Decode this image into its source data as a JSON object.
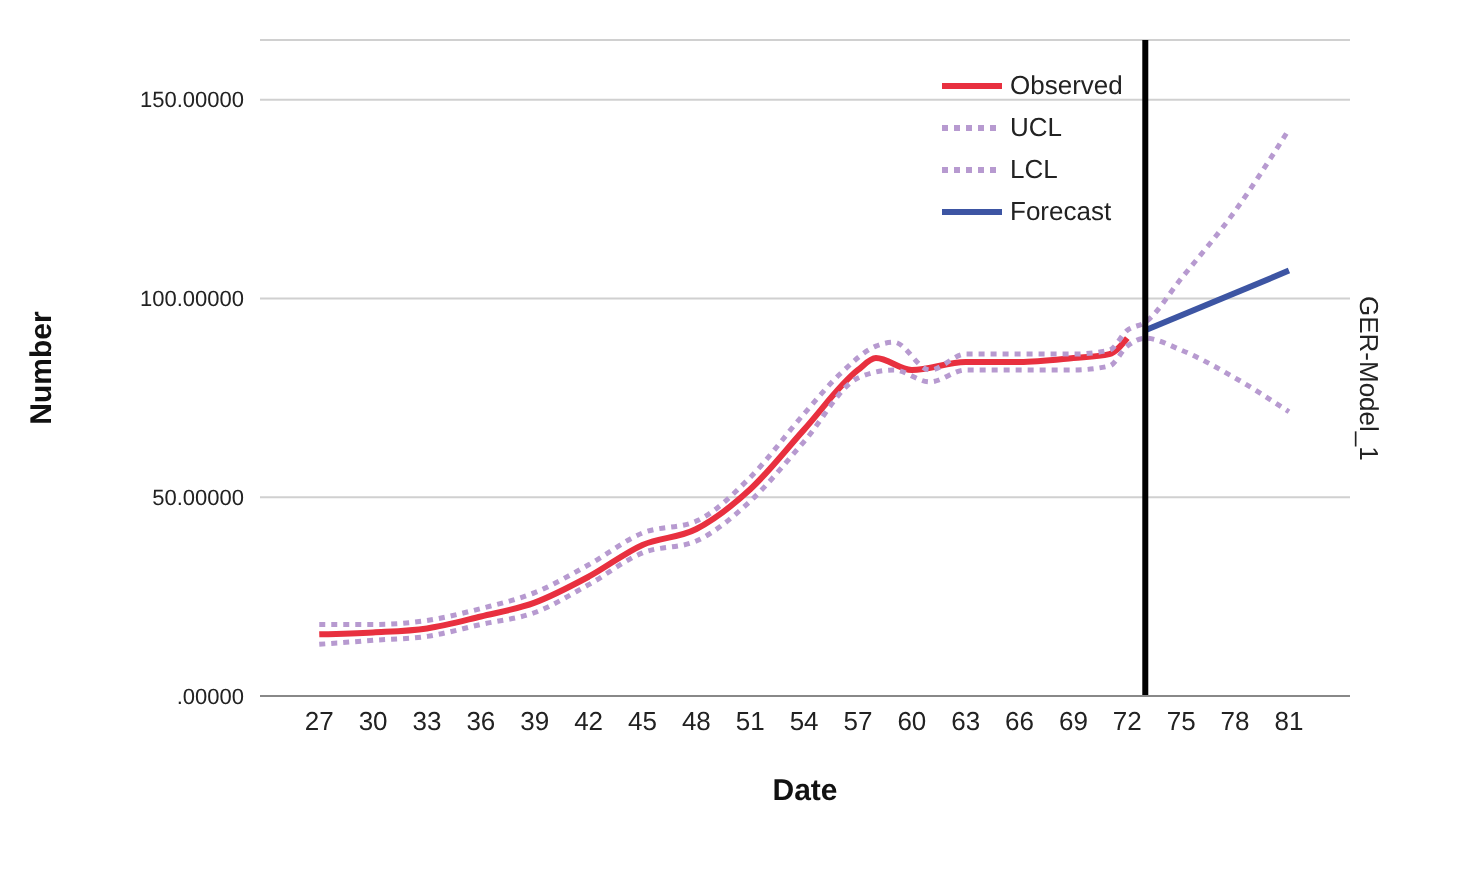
{
  "chart_data": {
    "type": "line",
    "xlabel": "Date",
    "ylabel": "Number",
    "annotations": [
      "GER-Model_1"
    ],
    "xlim": [
      23.7,
      84.4
    ],
    "xticks": [
      27,
      30,
      33,
      36,
      39,
      42,
      45,
      48,
      51,
      54,
      57,
      60,
      63,
      66,
      69,
      72,
      75,
      78,
      81
    ],
    "ylim": [
      0,
      165
    ],
    "yticks": [
      {
        "value": 0,
        "label": ".00000"
      },
      {
        "value": 50,
        "label": "50.00000"
      },
      {
        "value": 100,
        "label": "100.00000"
      },
      {
        "value": 150,
        "label": "150.00000"
      }
    ],
    "grid": "y",
    "legend": "top right",
    "marker": "none",
    "ref_lines": [
      {
        "axis": "x",
        "value": 73,
        "label": null,
        "color": "#000000"
      }
    ],
    "series": [
      {
        "name": "Observed",
        "color": "#e8303f",
        "line_style": "solid",
        "x": [
          27,
          30,
          33,
          36,
          39,
          42,
          45,
          48,
          51,
          54,
          57,
          58,
          60,
          63,
          66,
          69,
          71,
          72
        ],
        "values": [
          15.5,
          16,
          17,
          20,
          23.5,
          30,
          38,
          42,
          52,
          67,
          82,
          85,
          82,
          84,
          84,
          85,
          86,
          90
        ]
      },
      {
        "name": "UCL",
        "color": "#b79ad0",
        "line_style": "dotted",
        "x": [
          27,
          30,
          33,
          36,
          39,
          42,
          45,
          48,
          51,
          54,
          56,
          58,
          59,
          61,
          63,
          66,
          69,
          71,
          72,
          73,
          75,
          78,
          81
        ],
        "values": [
          18,
          18,
          19,
          22,
          26,
          33,
          41,
          44,
          55,
          71,
          81,
          88,
          89,
          82,
          86,
          86,
          86,
          87,
          92,
          94,
          105,
          122,
          142.5
        ]
      },
      {
        "name": "LCL",
        "color": "#b79ad0",
        "line_style": "dotted",
        "x": [
          27,
          30,
          33,
          36,
          39,
          42,
          45,
          48,
          51,
          54,
          57,
          59,
          61,
          63,
          66,
          69,
          71,
          72,
          73,
          75,
          78,
          81
        ],
        "values": [
          13,
          14,
          15,
          18,
          21,
          28,
          36,
          39,
          49,
          64,
          80,
          82,
          79,
          82,
          82,
          82,
          83,
          88,
          90,
          87,
          80,
          71.5
        ]
      },
      {
        "name": "Forecast",
        "color": "#3d55a3",
        "line_style": "solid",
        "x": [
          73,
          81
        ],
        "values": [
          92,
          107
        ]
      }
    ]
  }
}
